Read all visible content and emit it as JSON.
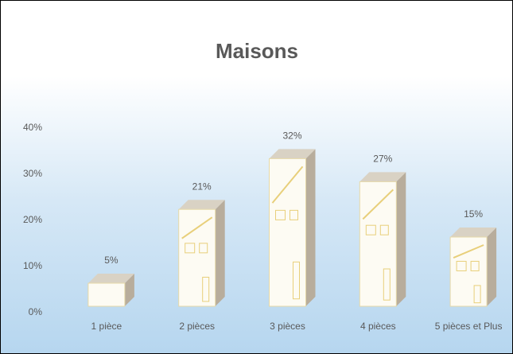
{
  "chart_data": {
    "type": "bar3d",
    "title": "Maisons",
    "categories": [
      "1 pièce",
      "2 pièces",
      "3 pièces",
      "4 pièces",
      "5 pièces et Plus"
    ],
    "values": [
      5,
      21,
      32,
      27,
      15
    ],
    "value_labels": [
      "5%",
      "21%",
      "32%",
      "27%",
      "15%"
    ],
    "color": "#fdfbf3",
    "ylim": [
      0,
      40
    ],
    "yticks": [
      {
        "value": 0,
        "label": "0%"
      },
      {
        "value": 10,
        "label": "10%"
      },
      {
        "value": 20,
        "label": "20%"
      },
      {
        "value": 30,
        "label": "30%"
      },
      {
        "value": 40,
        "label": "40%"
      }
    ],
    "grid": false
  }
}
